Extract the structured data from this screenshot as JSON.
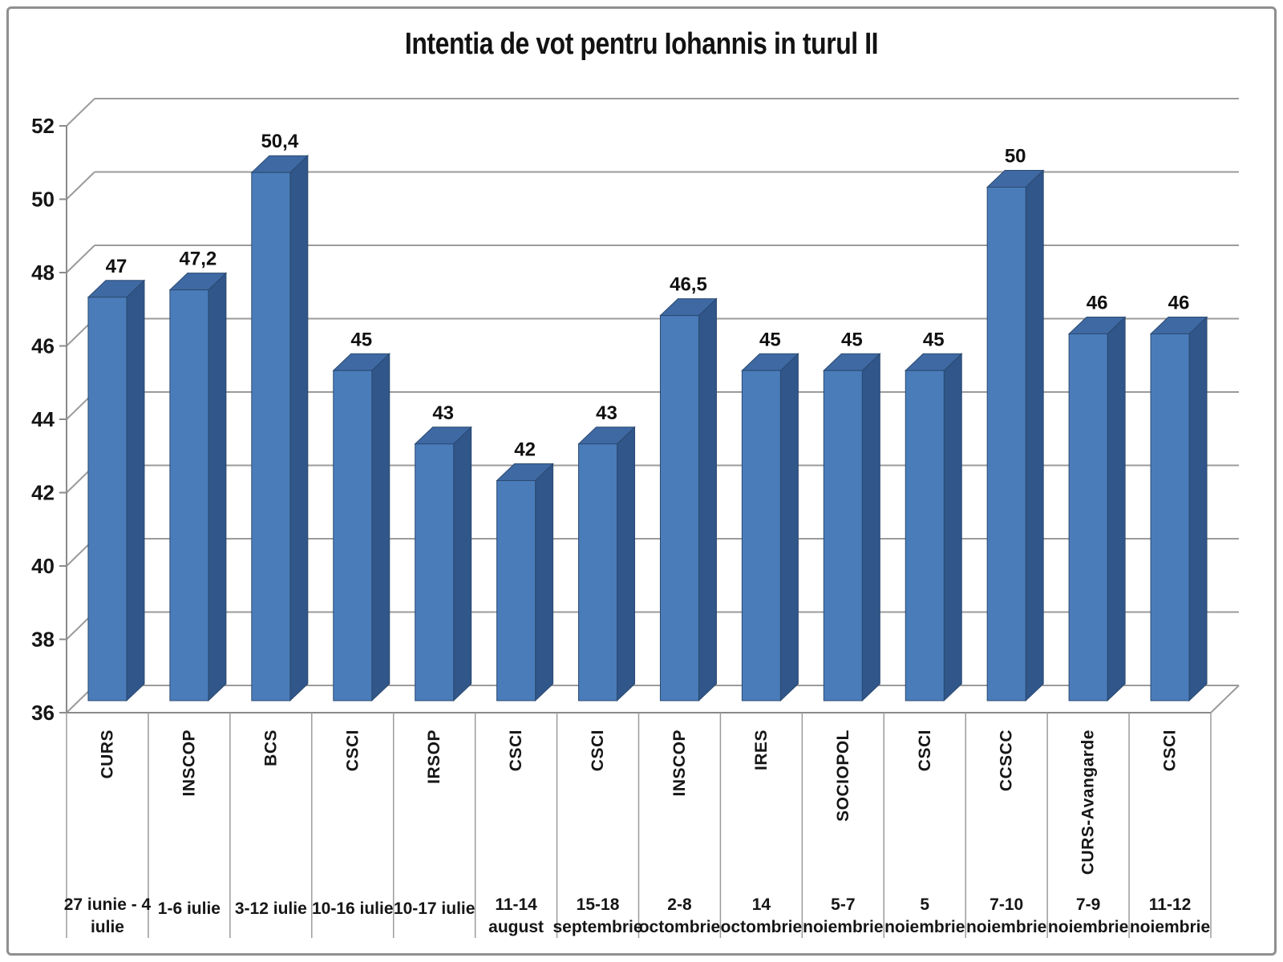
{
  "chart_data": {
    "type": "bar",
    "variant": "3d-column",
    "title": "Intentia de vot pentru Iohannis in turul II",
    "xlabel": "",
    "ylabel": "",
    "ylim": [
      36,
      52
    ],
    "yticks": [
      36,
      38,
      40,
      42,
      44,
      46,
      48,
      50,
      52
    ],
    "grid": true,
    "legend": false,
    "decimal_separator": ",",
    "colors": {
      "bar_front": "#4a7cba",
      "bar_top": "#3f69a3",
      "bar_side": "#30568a",
      "bar_outline": "#2b4a70",
      "gridline": "#9b9b9b",
      "axis": "#8a8a8a",
      "text": "#161616"
    },
    "categories": [
      {
        "institute": "CURS",
        "period_lines": [
          "27 iunie - 4",
          "iulie"
        ],
        "value": 47,
        "value_label": "47"
      },
      {
        "institute": "INSCOP",
        "period_lines": [
          "1-6 iulie"
        ],
        "value": 47.2,
        "value_label": "47,2"
      },
      {
        "institute": "BCS",
        "period_lines": [
          "3-12 iulie"
        ],
        "value": 50.4,
        "value_label": "50,4"
      },
      {
        "institute": "CSCI",
        "period_lines": [
          "10-16 iulie"
        ],
        "value": 45,
        "value_label": "45"
      },
      {
        "institute": "IRSOP",
        "period_lines": [
          "10-17 iulie"
        ],
        "value": 43,
        "value_label": "43"
      },
      {
        "institute": "CSCI",
        "period_lines": [
          "11-14",
          "august"
        ],
        "value": 42,
        "value_label": "42"
      },
      {
        "institute": "CSCI",
        "period_lines": [
          "15-18",
          "septembrie"
        ],
        "value": 43,
        "value_label": "43"
      },
      {
        "institute": "INSCOP",
        "period_lines": [
          "2-8",
          "octombrie"
        ],
        "value": 46.5,
        "value_label": "46,5"
      },
      {
        "institute": "IRES",
        "period_lines": [
          "14",
          "octombrie"
        ],
        "value": 45,
        "value_label": "45"
      },
      {
        "institute": "SOCIOPOL",
        "period_lines": [
          "5-7",
          "noiembrie"
        ],
        "value": 45,
        "value_label": "45"
      },
      {
        "institute": "CSCI",
        "period_lines": [
          "5",
          "noiembrie"
        ],
        "value": 45,
        "value_label": "45"
      },
      {
        "institute": "CCSCC",
        "period_lines": [
          "7-10",
          "noiembrie"
        ],
        "value": 50,
        "value_label": "50"
      },
      {
        "institute": "CURS-Avangarde",
        "period_lines": [
          "7-9",
          "noiembrie"
        ],
        "value": 46,
        "value_label": "46"
      },
      {
        "institute": "CSCI",
        "period_lines": [
          "11-12",
          "noiembrie"
        ],
        "value": 46,
        "value_label": "46"
      }
    ]
  }
}
